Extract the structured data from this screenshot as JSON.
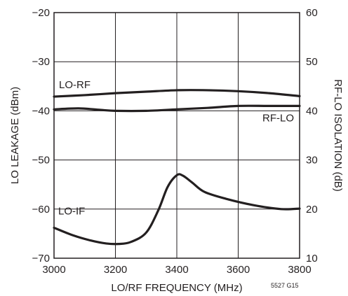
{
  "chart_data": {
    "type": "line",
    "figure_id": "5527 G15",
    "xlabel": "LO/RF FREQUENCY (MHz)",
    "ylabel_left": "LO LEAKAGE (dBm)",
    "ylabel_right": "RF-LO ISOLATION (dB)",
    "xlim": [
      3000,
      3800
    ],
    "ylim_left": [
      -70,
      -20
    ],
    "ylim_right": [
      10,
      60
    ],
    "x_ticks": [
      "3000",
      "3200",
      "3400",
      "3600",
      "3800"
    ],
    "y_ticks_left": [
      "−70",
      "−60",
      "−50",
      "−40",
      "−30",
      "−20"
    ],
    "y_ticks_right": [
      "10",
      "20",
      "30",
      "40",
      "50",
      "60"
    ],
    "grid": true,
    "colors": {
      "line": "#231f20",
      "grid": "#231f20"
    },
    "series": [
      {
        "name": "LO-RF",
        "axis": "left",
        "x": [
          3000,
          3100,
          3200,
          3300,
          3400,
          3500,
          3600,
          3700,
          3800
        ],
        "y": [
          -37.1,
          -36.8,
          -36.4,
          -36.1,
          -35.8,
          -35.8,
          -36.0,
          -36.4,
          -37.0
        ]
      },
      {
        "name": "RF-LO",
        "axis": "right",
        "x": [
          3000,
          3080,
          3150,
          3200,
          3300,
          3400,
          3500,
          3600,
          3700,
          3800
        ],
        "y": [
          40.3,
          40.5,
          40.2,
          40.0,
          40.0,
          40.3,
          40.6,
          41.0,
          41.0,
          41.0
        ]
      },
      {
        "name": "LO-IF",
        "axis": "left",
        "x": [
          3000,
          3060,
          3120,
          3170,
          3210,
          3250,
          3300,
          3340,
          3370,
          3400,
          3420,
          3450,
          3490,
          3560,
          3650,
          3740,
          3800
        ],
        "y": [
          -63.8,
          -65.3,
          -66.4,
          -67.0,
          -67.1,
          -66.7,
          -64.8,
          -60.2,
          -55.5,
          -53.1,
          -53.2,
          -54.6,
          -56.5,
          -57.9,
          -59.2,
          -60.0,
          -59.9
        ]
      }
    ]
  }
}
